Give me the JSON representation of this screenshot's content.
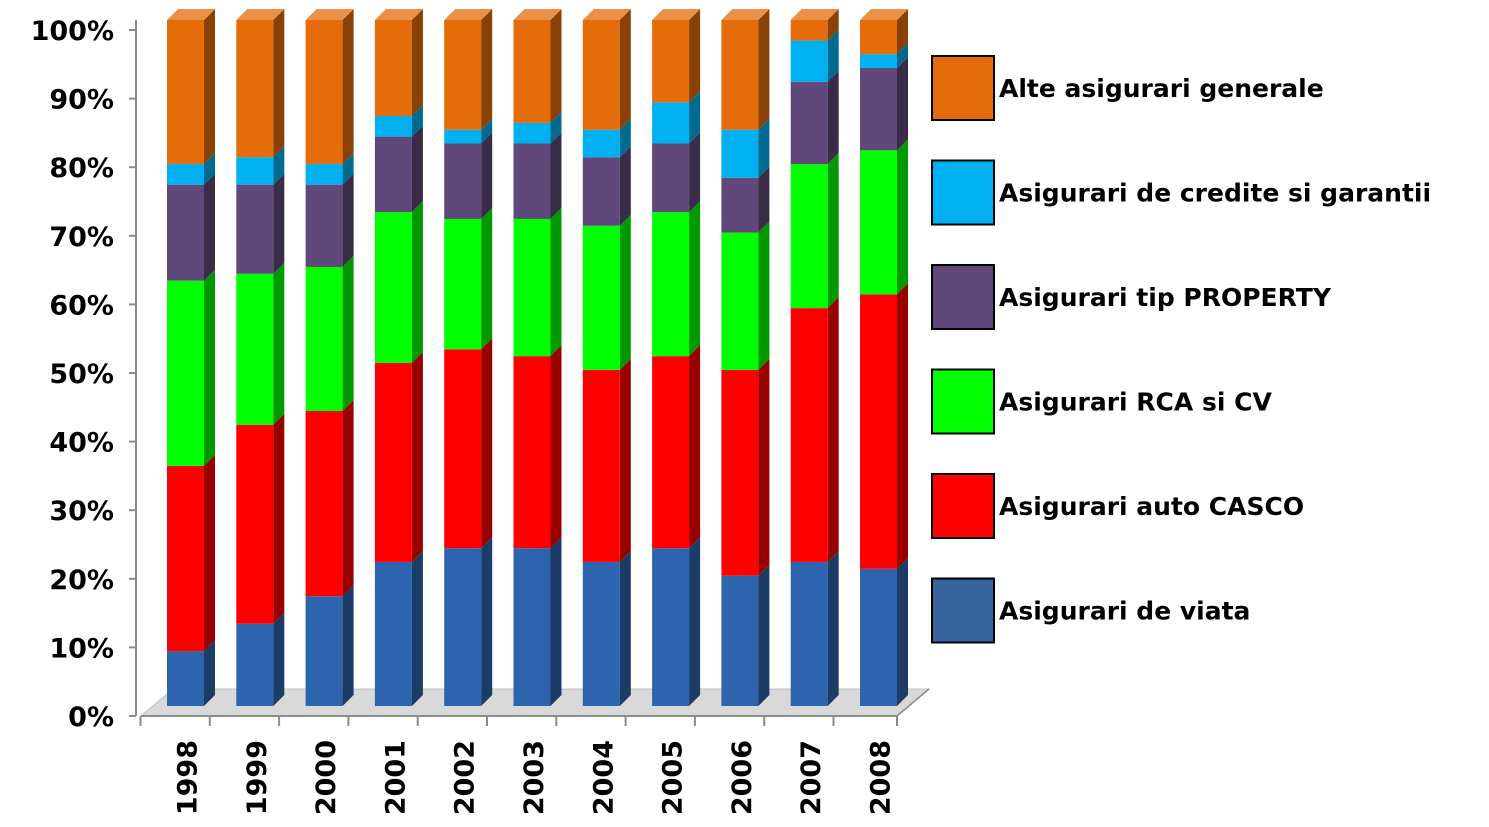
{
  "chart_data": {
    "type": "bar",
    "stacked": "percent",
    "style": "3d-column",
    "categories": [
      "1998",
      "1999",
      "2000",
      "2001",
      "2002",
      "2003",
      "2004",
      "2005",
      "2006",
      "2007",
      "2008"
    ],
    "yticks": [
      "0%",
      "10%",
      "20%",
      "30%",
      "40%",
      "50%",
      "60%",
      "70%",
      "80%",
      "90%",
      "100%"
    ],
    "ylim": [
      0,
      100
    ],
    "series": [
      {
        "name": "Asigurari de viata",
        "color": "#2e64ad",
        "legend_color": "#35659c",
        "values": [
          8,
          12,
          16,
          21,
          23,
          23,
          21,
          23,
          19,
          21,
          20
        ]
      },
      {
        "name": "Asigurari auto CASCO",
        "color": "#ff0000",
        "values": [
          27,
          29,
          27,
          29,
          29,
          28,
          28,
          28,
          30,
          37,
          40
        ]
      },
      {
        "name": "Asigurari RCA si CV",
        "color": "#00ff00",
        "values": [
          27,
          22,
          21,
          22,
          19,
          20,
          21,
          21,
          20,
          21,
          21
        ]
      },
      {
        "name": "Asigurari tip PROPERTY",
        "color": "#60497a",
        "values": [
          14,
          13,
          12,
          11,
          11,
          11,
          10,
          10,
          8,
          12,
          12
        ]
      },
      {
        "name": "Asigurari de credite si garantii",
        "color": "#00b0f0",
        "values": [
          3,
          4,
          3,
          3,
          2,
          3,
          4,
          6,
          7,
          6,
          2
        ]
      },
      {
        "name": "Alte asigurari generale",
        "color": "#e46c0a",
        "values": [
          21,
          20,
          21,
          14,
          16,
          15,
          16,
          12,
          16,
          3,
          5
        ]
      }
    ],
    "legend_position": "right",
    "grid": false
  }
}
